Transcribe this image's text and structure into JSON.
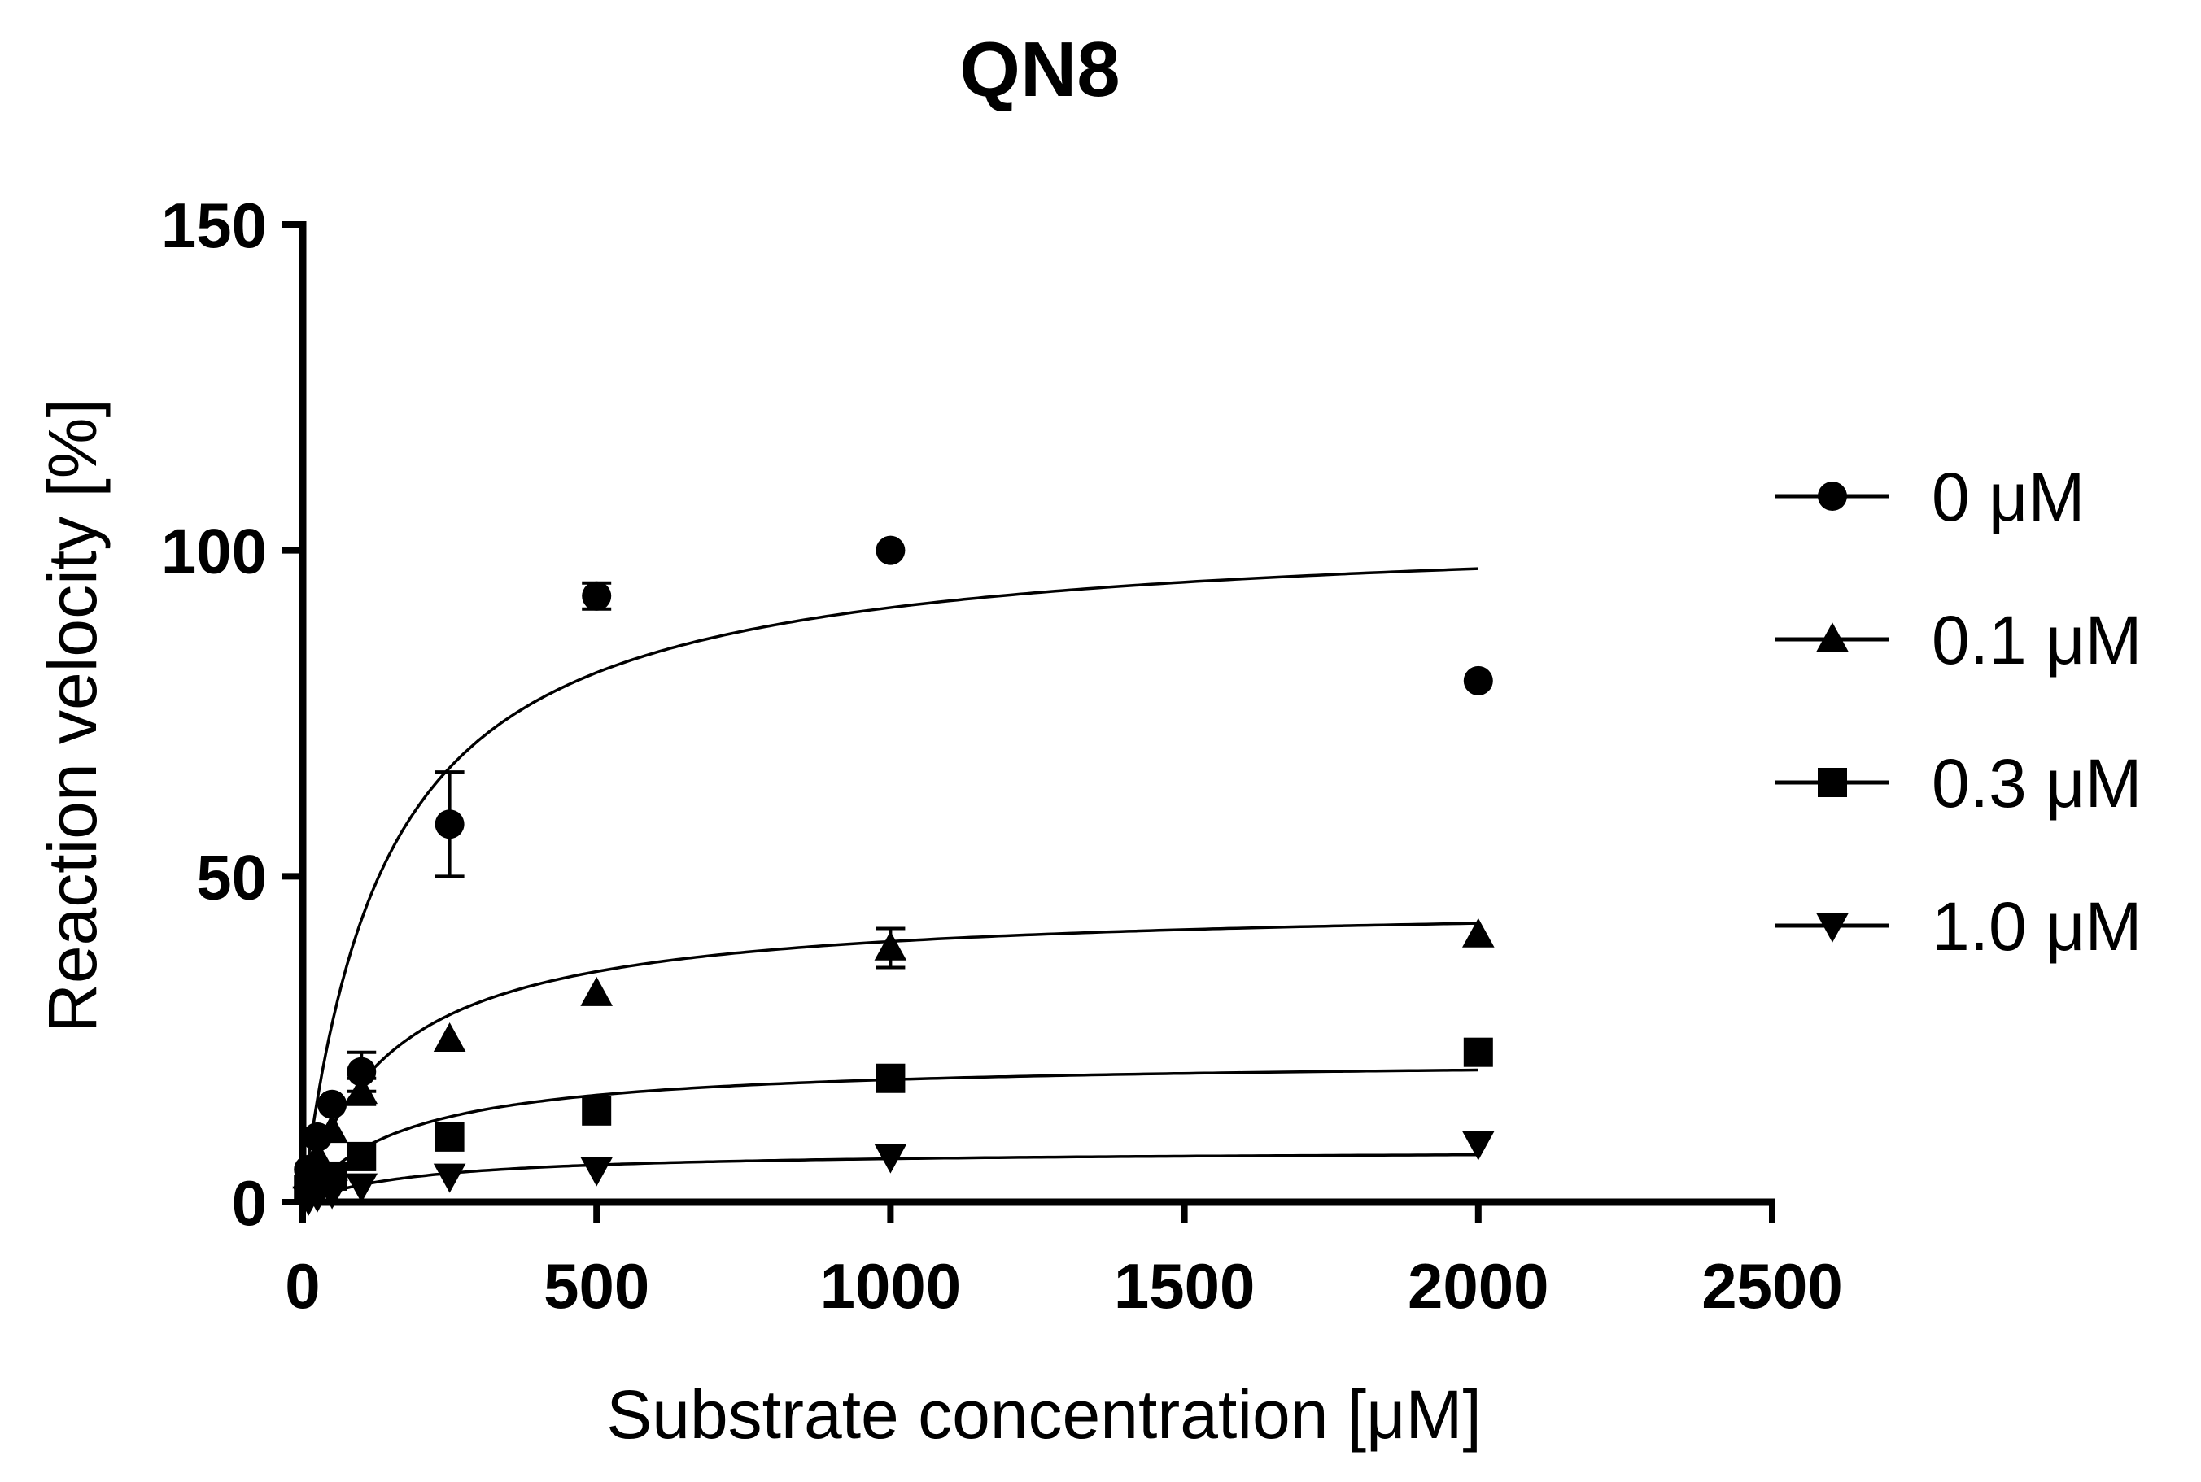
{
  "chart_data": {
    "type": "scatter",
    "title": "QN8",
    "xlabel": "Substrate concentration [μM]",
    "ylabel": "Reaction velocity [%]",
    "xlim": [
      0,
      2500
    ],
    "ylim": [
      0,
      150
    ],
    "xticks": [
      0,
      500,
      1000,
      1500,
      2000,
      2500
    ],
    "yticks": [
      0,
      50,
      100,
      150
    ],
    "xtick_labels": [
      "0",
      "500",
      "1000",
      "1500",
      "2000",
      "2500"
    ],
    "ytick_labels": [
      "0",
      "50",
      "100",
      "150"
    ],
    "grid": false,
    "legend_position": "right",
    "fit": "Michaelis-Menten curve per series",
    "series": [
      {
        "name": "0 μM",
        "marker": "circle",
        "x": [
          10,
          25,
          50,
          100,
          250,
          500,
          1000,
          2000
        ],
        "y": [
          5,
          10,
          15,
          20,
          58,
          93,
          100,
          80
        ],
        "err": [
          0,
          0,
          0,
          3,
          8,
          2,
          0,
          0
        ],
        "fit": {
          "vmax": 104,
          "km": 140
        }
      },
      {
        "name": "0.1 μM",
        "marker": "triangle-up",
        "x": [
          10,
          25,
          50,
          100,
          250,
          500,
          1000,
          2000
        ],
        "y": [
          4,
          7,
          11,
          17,
          25,
          32,
          39,
          41
        ],
        "err": [
          0,
          0,
          0,
          2,
          0,
          0,
          3,
          0
        ],
        "fit": {
          "vmax": 46,
          "km": 150
        }
      },
      {
        "name": "0.3 μM",
        "marker": "square",
        "x": [
          10,
          25,
          50,
          100,
          250,
          500,
          1000,
          2000
        ],
        "y": [
          2,
          3,
          4,
          7,
          10,
          14,
          19,
          23
        ],
        "err": [
          0,
          0,
          0,
          0,
          0,
          0,
          0,
          0
        ],
        "fit": {
          "vmax": 22,
          "km": 170
        }
      },
      {
        "name": "1.0 μM",
        "marker": "triangle-down",
        "x": [
          10,
          25,
          50,
          100,
          250,
          500,
          1000,
          2000
        ],
        "y": [
          0.5,
          1,
          1.5,
          2.5,
          4,
          5,
          7,
          9
        ],
        "err": [
          0,
          0,
          0,
          0,
          0,
          0,
          0,
          0
        ],
        "fit": {
          "vmax": 8,
          "km": 200
        }
      }
    ]
  },
  "colors": {
    "ink": "#000000",
    "background": "#ffffff"
  }
}
